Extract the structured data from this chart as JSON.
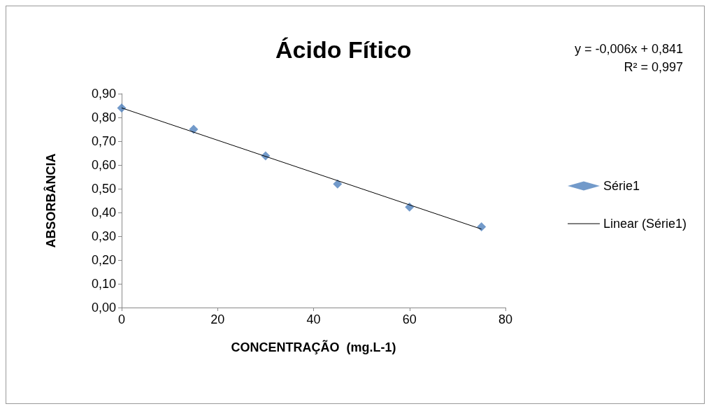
{
  "chart_data": {
    "type": "scatter",
    "title": "Ácido Fítico",
    "xlabel": "CONCENTRAÇÃO  (mg.L-1)",
    "ylabel": "ABSORBÂNCIA",
    "annotations": [
      "y = -0,006x + 0,841",
      "R² = 0,997"
    ],
    "series": [
      {
        "name": "Série1",
        "type": "scatter",
        "color": "#4f81bd",
        "marker": "diamond",
        "x": [
          0,
          15,
          30,
          45,
          60,
          75
        ],
        "values": [
          0.84,
          0.75,
          0.638,
          0.52,
          0.423,
          0.34
        ]
      },
      {
        "name": "Linear (Série1)",
        "type": "line",
        "color": "#000000",
        "marker": "none",
        "line_style": "solid",
        "x": [
          0,
          75
        ],
        "values": [
          0.84,
          0.33
        ]
      }
    ],
    "xlim": [
      0,
      80
    ],
    "xticks": [
      0,
      20,
      40,
      60,
      80
    ],
    "ylim": [
      0,
      0.9
    ],
    "yticks": [
      {
        "value": 0,
        "label": "0,00"
      },
      {
        "value": 0.1,
        "label": "0,10"
      },
      {
        "value": 0.2,
        "label": "0,20"
      },
      {
        "value": 0.3,
        "label": "0,30"
      },
      {
        "value": 0.4,
        "label": "0,40"
      },
      {
        "value": 0.5,
        "label": "0,50"
      },
      {
        "value": 0.6,
        "label": "0,60"
      },
      {
        "value": 0.7,
        "label": "0,70"
      },
      {
        "value": 0.8,
        "label": "0,80"
      },
      {
        "value": 0.9,
        "label": "0,90"
      }
    ],
    "grid": false,
    "legend": "right"
  }
}
